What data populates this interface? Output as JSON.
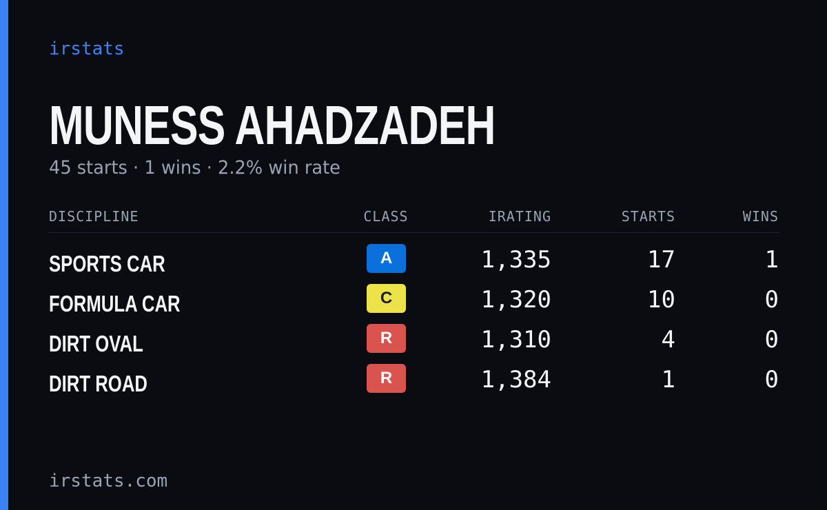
{
  "brand": "irstats",
  "driver": {
    "name": "MUNESS AHADZADEH",
    "summary": "45 starts · 1 wins · 2.2% win rate"
  },
  "table": {
    "headers": [
      "DISCIPLINE",
      "CLASS",
      "IRATING",
      "STARTS",
      "WINS"
    ],
    "rows": [
      {
        "discipline": "SPORTS CAR",
        "class": "A",
        "class_color": "#0b6fdc",
        "class_text_color": "#ffffff",
        "irating": "1,335",
        "starts": "17",
        "wins": "1"
      },
      {
        "discipline": "FORMULA CAR",
        "class": "C",
        "class_color": "#ece34a",
        "class_text_color": "#1a1a1a",
        "irating": "1,320",
        "starts": "10",
        "wins": "0"
      },
      {
        "discipline": "DIRT OVAL",
        "class": "R",
        "class_color": "#d9534f",
        "class_text_color": "#ffffff",
        "irating": "1,310",
        "starts": "4",
        "wins": "0"
      },
      {
        "discipline": "DIRT ROAD",
        "class": "R",
        "class_color": "#d9534f",
        "class_text_color": "#ffffff",
        "irating": "1,384",
        "starts": "1",
        "wins": "0"
      }
    ]
  },
  "footer": "irstats.com"
}
